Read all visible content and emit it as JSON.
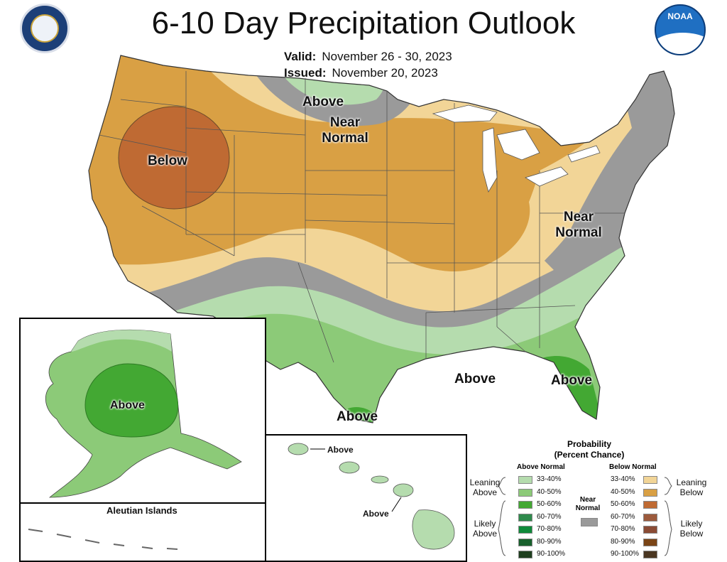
{
  "header": {
    "title": "6-10 Day Precipitation Outlook",
    "valid_label": "Valid:",
    "valid_value": "November 26 - 30, 2023",
    "issued_label": "Issued:",
    "issued_value": "November 20, 2023"
  },
  "logos": {
    "left": "department-of-commerce-seal",
    "right": "noaa-logo",
    "noaa_text": "NOAA"
  },
  "map_labels": {
    "above_north": "Above",
    "near_normal_north_1": "Near",
    "near_normal_north_2": "Normal",
    "below_west": "Below",
    "near_normal_east_1": "Near",
    "near_normal_east_2": "Normal",
    "above_south": "Above",
    "above_florida": "Above",
    "above_texas": "Above"
  },
  "alaska": {
    "label": "Above",
    "aleutian_title": "Aleutian Islands"
  },
  "hawaii": {
    "label_north": "Above",
    "label_south": "Above"
  },
  "legend": {
    "title_1": "Probability",
    "title_2": "(Percent Chance)",
    "above_head": "Above Normal",
    "below_head": "Below Normal",
    "near_head_1": "Near",
    "near_head_2": "Normal",
    "leaning_above_1": "Leaning",
    "leaning_above_2": "Above",
    "likely_above_1": "Likely",
    "likely_above_2": "Above",
    "leaning_below_1": "Leaning",
    "leaning_below_2": "Below",
    "likely_below_1": "Likely",
    "likely_below_2": "Below",
    "above_bins": [
      {
        "label": "33-40%",
        "color": "#b5dcae"
      },
      {
        "label": "40-50%",
        "color": "#8cca78"
      },
      {
        "label": "50-60%",
        "color": "#43a833"
      },
      {
        "label": "60-70%",
        "color": "#2f8a4c"
      },
      {
        "label": "70-80%",
        "color": "#0f8a3a"
      },
      {
        "label": "80-90%",
        "color": "#18602c"
      },
      {
        "label": "90-100%",
        "color": "#1f3f1f"
      }
    ],
    "below_bins": [
      {
        "label": "33-40%",
        "color": "#f2d597"
      },
      {
        "label": "40-50%",
        "color": "#d9a044"
      },
      {
        "label": "50-60%",
        "color": "#bf6a33"
      },
      {
        "label": "60-70%",
        "color": "#9c5a3c"
      },
      {
        "label": "70-80%",
        "color": "#8a4b35"
      },
      {
        "label": "80-90%",
        "color": "#7a4416"
      },
      {
        "label": "90-100%",
        "color": "#4a3621"
      }
    ],
    "near_color": "#9a9a9a"
  },
  "colors": {
    "above_33_40": "#b5dcae",
    "above_40_50": "#8cca78",
    "above_50_60": "#43a833",
    "below_33_40": "#f2d597",
    "below_40_50": "#d9a044",
    "below_50_60": "#bf6a33",
    "near_normal": "#9a9a9a"
  }
}
